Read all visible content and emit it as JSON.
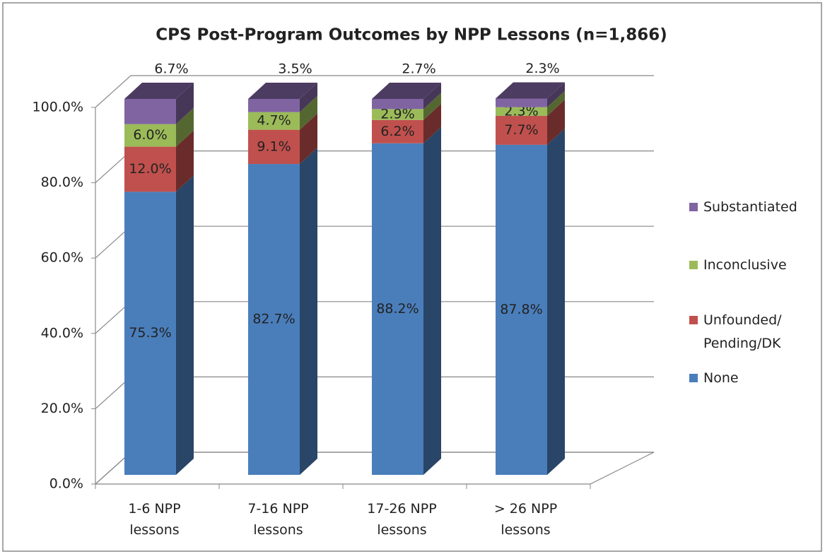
{
  "chart_data": {
    "type": "bar3d_stacked",
    "title": "CPS Post-Program Outcomes by NPP Lessons (n=1,866)",
    "categories": [
      "1-6 NPP lessons",
      "7-16 NPP lessons",
      "17-26 NPP lessons",
      "> 26 NPP lessons"
    ],
    "series": [
      {
        "name": "None",
        "color": "#4a7ebb",
        "values": [
          75.3,
          82.7,
          88.2,
          87.8
        ],
        "value_labels": [
          "75.3%",
          "82.7%",
          "88.2%",
          "87.8%"
        ]
      },
      {
        "name": "Unfounded/ Pending/DK",
        "color": "#c0504d",
        "values": [
          12.0,
          9.1,
          6.2,
          7.7
        ],
        "value_labels": [
          "12.0%",
          "9.1%",
          "6.2%",
          "7.7%"
        ]
      },
      {
        "name": "Inconclusive",
        "color": "#9bbb59",
        "values": [
          6.0,
          4.7,
          2.9,
          2.3
        ],
        "value_labels": [
          "6.0%",
          "4.7%",
          "2.9%",
          "2.3%"
        ]
      },
      {
        "name": "Substantiated",
        "color": "#8064a2",
        "values": [
          6.7,
          3.5,
          2.7,
          2.3
        ],
        "value_labels": [
          "6.7%",
          "3.5%",
          "2.7%",
          "2.3%"
        ]
      }
    ],
    "ylim": [
      0,
      100
    ],
    "yticks": [
      {
        "value": 0,
        "label": "0.0%"
      },
      {
        "value": 20,
        "label": "20.0%"
      },
      {
        "value": 40,
        "label": "40.0%"
      },
      {
        "value": 60,
        "label": "60.0%"
      },
      {
        "value": 80,
        "label": "80.0%"
      },
      {
        "value": 100,
        "label": "100.0%"
      }
    ],
    "grid": true,
    "legend": "right"
  }
}
